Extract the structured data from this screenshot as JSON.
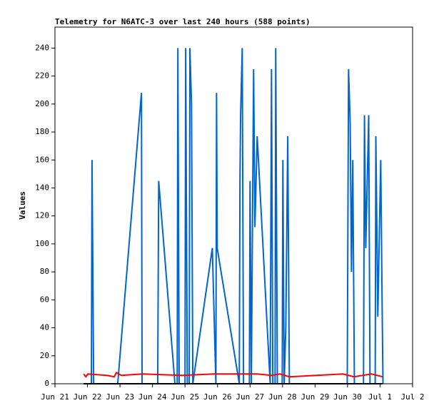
{
  "chart_data": {
    "type": "line",
    "title": "Telemetry for N6ATC-3 over last 240 hours (588 points)",
    "y_label": "Values",
    "xlim": [
      21,
      32
    ],
    "ylim": [
      0,
      255
    ],
    "xticks": [
      {
        "value": 21,
        "label": "Jun 21"
      },
      {
        "value": 22,
        "label": "Jun 22"
      },
      {
        "value": 23,
        "label": "Jun 23"
      },
      {
        "value": 24,
        "label": "Jun 24"
      },
      {
        "value": 25,
        "label": "Jun 25"
      },
      {
        "value": 26,
        "label": "Jun 26"
      },
      {
        "value": 27,
        "label": "Jun 27"
      },
      {
        "value": 28,
        "label": "Jun 28"
      },
      {
        "value": 29,
        "label": "Jun 29"
      },
      {
        "value": 30,
        "label": "Jun 30"
      },
      {
        "value": 31,
        "label": "Jul 1"
      },
      {
        "value": 32,
        "label": "Jul 2"
      }
    ],
    "yticks": [
      0,
      20,
      40,
      60,
      80,
      100,
      120,
      140,
      160,
      180,
      200,
      220,
      240
    ],
    "series": [
      {
        "color": "#0066cc",
        "x": [
          22.12,
          22.14,
          22.19,
          22.93,
          23.66,
          23.68,
          24.16,
          24.19,
          24.69,
          24.76,
          24.78,
          24.82,
          25.0,
          25.02,
          25.07,
          25.13,
          25.15,
          25.2,
          25.24,
          25.84,
          25.95,
          25.97,
          25.99,
          26.67,
          26.69,
          26.71,
          26.76,
          26.8,
          26.98,
          27.0,
          27.04,
          27.11,
          27.15,
          27.22,
          27.62,
          27.66,
          27.7,
          27.77,
          27.79,
          27.84,
          27.99,
          28.01,
          28.05,
          28.1,
          28.16,
          28.21,
          29.99,
          30.03,
          30.08,
          30.12,
          30.16,
          30.21,
          30.49,
          30.52,
          30.56,
          30.65,
          30.69,
          30.85,
          30.87,
          30.93,
          31.02,
          31.07,
          31.09
        ],
        "values": [
          0,
          160,
          0,
          0,
          208,
          0,
          0,
          145,
          0,
          0,
          240,
          0,
          0,
          240,
          0,
          0,
          240,
          200,
          0,
          97,
          0,
          208,
          97,
          0,
          145,
          192,
          240,
          0,
          0,
          145,
          0,
          225,
          112,
          177,
          0,
          225,
          0,
          0,
          240,
          0,
          0,
          160,
          0,
          40,
          177,
          0,
          0,
          225,
          187,
          80,
          160,
          0,
          0,
          192,
          97,
          192,
          0,
          0,
          177,
          48,
          160,
          40,
          0
        ]
      },
      {
        "color": "#ff0000",
        "x": [
          21.88,
          21.95,
          22.01,
          22.6,
          22.82,
          22.89,
          23.04,
          23.7,
          24.91,
          25.9,
          27.22,
          27.66,
          27.92,
          28.21,
          29.86,
          30.19,
          30.74,
          31.07
        ],
        "values": [
          7,
          5,
          7,
          6,
          5,
          8,
          6,
          7,
          6,
          7,
          7,
          6,
          7,
          5,
          7,
          5,
          7,
          5
        ]
      },
      {
        "color": "#000000",
        "x": [
          21.88,
          31.07
        ],
        "values": [
          0,
          0
        ]
      }
    ]
  }
}
